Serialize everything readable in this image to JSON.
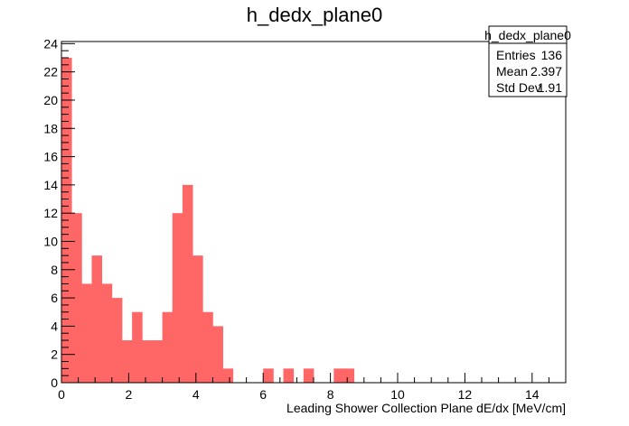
{
  "chart_data": {
    "type": "bar",
    "title": "h_dedx_plane0",
    "xlabel": "Leading Shower Collection Plane dE/dx [MeV/cm]",
    "ylabel": "",
    "xlim": [
      0,
      15
    ],
    "ylim": [
      0,
      24.15
    ],
    "bin_width": 0.3,
    "bin_low_edges": [
      0,
      0.3,
      0.6,
      0.9,
      1.2,
      1.5,
      1.8,
      2.1,
      2.4,
      2.7,
      3.0,
      3.3,
      3.6,
      3.9,
      4.2,
      4.5,
      4.8,
      5.1,
      5.4,
      5.7,
      6.0,
      6.3,
      6.6,
      6.9,
      7.2,
      7.5,
      7.8,
      8.1,
      8.4,
      8.7,
      9.0,
      9.3,
      9.6,
      9.9,
      10.2,
      10.5,
      10.8,
      11.1,
      11.4,
      11.7,
      12.0,
      12.3,
      12.6,
      12.9,
      13.2,
      13.5,
      13.8,
      14.1,
      14.4,
      14.7
    ],
    "values": [
      23,
      12,
      7,
      9,
      7,
      6,
      3,
      5,
      3,
      3,
      5,
      12,
      14,
      9,
      5,
      4,
      1,
      0,
      0,
      0,
      1,
      0,
      1,
      0,
      1,
      0,
      0,
      1,
      1,
      0,
      0,
      0,
      0,
      0,
      0,
      0,
      0,
      0,
      0,
      0,
      0,
      0,
      0,
      0,
      0,
      0,
      0,
      0,
      0,
      0
    ],
    "x_ticks": [
      0,
      2,
      4,
      6,
      8,
      10,
      12,
      14
    ],
    "y_ticks": [
      0,
      2,
      4,
      6,
      8,
      10,
      12,
      14,
      16,
      18,
      20,
      22,
      24
    ],
    "fill_color": "#ff6666",
    "stats": {
      "name": "h_dedx_plane0",
      "rows": [
        {
          "label": "Entries",
          "value": "136"
        },
        {
          "label": "Mean",
          "value": "2.397"
        },
        {
          "label": "Std Dev",
          "value": "1.91"
        }
      ]
    }
  }
}
